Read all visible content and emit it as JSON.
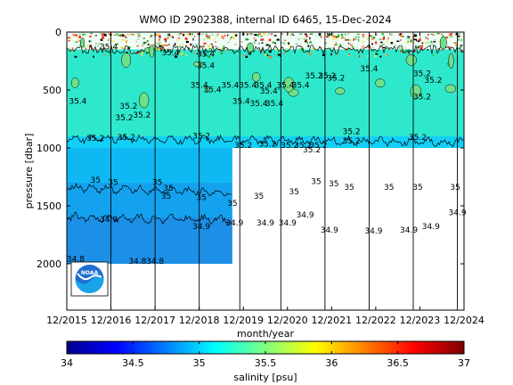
{
  "chart_data": {
    "type": "heatmap",
    "title": "WMO ID 2902388, internal ID 6465, 15-Dec-2024",
    "xlabel": "month/year",
    "ylabel": "pressure [dbar]",
    "x_tick_labels": [
      "12/2015",
      "12/2016",
      "12/2017",
      "12/2018",
      "12/2019",
      "12/2020",
      "12/2021",
      "12/2022",
      "12/2023",
      "12/2024"
    ],
    "x_tick_years": [
      2015,
      2016,
      2017,
      2018,
      2019,
      2020,
      2021,
      2022,
      2023,
      2024
    ],
    "xlim": [
      2015.0,
      2024.0
    ],
    "y_ticks": [
      0,
      500,
      1000,
      1500,
      2000
    ],
    "y_tick_labels": [
      "0",
      "500",
      "1000",
      "1500",
      "2000"
    ],
    "ylim": [
      0,
      2400
    ],
    "y_reversed": true,
    "colorbar": {
      "label": "salinity [psu]",
      "range": [
        34,
        37
      ],
      "ticks": [
        34,
        34.5,
        35,
        35.5,
        36,
        36.5,
        37
      ],
      "tick_labels": [
        "34",
        "34.5",
        "35",
        "35.5",
        "36",
        "36.5",
        "37"
      ]
    },
    "profile_years": [
      2016.0,
      2017.0,
      2018.0,
      2018.92,
      2019.85,
      2020.85,
      2021.85,
      2022.85,
      2023.85
    ],
    "data_extent": {
      "deep_end_year": 2018.75,
      "deep_max_pressure": 2000,
      "shallow_max_pressure": 1000
    },
    "salinity_layers": [
      {
        "p_top": 0,
        "p_bottom": 150,
        "salinity": 35.6,
        "color": "#f0fcf6"
      },
      {
        "p_top": 150,
        "p_bottom": 900,
        "salinity": 35.1,
        "color": "#2ee8cc"
      },
      {
        "p_top": 900,
        "p_bottom": 1000,
        "salinity": 35.0,
        "color": "#12cff6"
      },
      {
        "p_top": 1000,
        "p_bottom": 1300,
        "salinity": 34.95,
        "color": "#0fb8f2"
      },
      {
        "p_top": 1300,
        "p_bottom": 1600,
        "salinity": 34.9,
        "color": "#14a2ee"
      },
      {
        "p_top": 1600,
        "p_bottom": 2000,
        "salinity": 34.85,
        "color": "#1d8fe6"
      }
    ],
    "contours": [
      {
        "label": "35.2",
        "pressure_start": 920,
        "pressure_end": 950
      },
      {
        "label": "35",
        "pressure_start": 1340,
        "pressure_end": 1390
      },
      {
        "label": "34.9",
        "pressure_start": 1600,
        "pressure_end": 1620
      }
    ],
    "annotations": [
      {
        "text": "35.4",
        "x": 2015.95,
        "y": 150
      },
      {
        "text": "35.4",
        "x": 2017.35,
        "y": 200
      },
      {
        "text": "35.4",
        "x": 2018.15,
        "y": 210
      },
      {
        "text": "35.4",
        "x": 2018.15,
        "y": 310
      },
      {
        "text": "35.4",
        "x": 2018.0,
        "y": 480
      },
      {
        "text": "35.4",
        "x": 2018.3,
        "y": 520
      },
      {
        "text": "35.4",
        "x": 2018.7,
        "y": 480
      },
      {
        "text": "35.4",
        "x": 2019.1,
        "y": 480
      },
      {
        "text": "35.4",
        "x": 2019.45,
        "y": 480
      },
      {
        "text": "35.4'",
        "x": 2019.6,
        "y": 530
      },
      {
        "text": "35.4",
        "x": 2019.95,
        "y": 480
      },
      {
        "text": "35.4",
        "x": 2020.3,
        "y": 480
      },
      {
        "text": "35.4",
        "x": 2018.95,
        "y": 620
      },
      {
        "text": "35.4",
        "x": 2019.35,
        "y": 640
      },
      {
        "text": "35.4",
        "x": 2019.7,
        "y": 640
      },
      {
        "text": "35.4",
        "x": 2015.25,
        "y": 620
      },
      {
        "text": "35.2",
        "x": 2020.6,
        "y": 400
      },
      {
        "text": "35.2",
        "x": 2020.9,
        "y": 400
      },
      {
        "text": "35.2",
        "x": 2021.1,
        "y": 420
      },
      {
        "text": "35.4",
        "x": 2021.85,
        "y": 340
      },
      {
        "text": "35.2",
        "x": 2023.05,
        "y": 380
      },
      {
        "text": "35.2",
        "x": 2023.3,
        "y": 440
      },
      {
        "text": "35.2",
        "x": 2023.05,
        "y": 580
      },
      {
        "text": "35.2",
        "x": 2016.4,
        "y": 660
      },
      {
        "text": "35.2",
        "x": 2016.3,
        "y": 760
      },
      {
        "text": "35.2",
        "x": 2016.7,
        "y": 740
      },
      {
        "text": "35.2",
        "x": 2015.65,
        "y": 940
      },
      {
        "text": "35.2",
        "x": 2016.35,
        "y": 930
      },
      {
        "text": "35.2",
        "x": 2018.05,
        "y": 920
      },
      {
        "text": "35.2",
        "x": 2019.0,
        "y": 1000
      },
      {
        "text": "35.2",
        "x": 2019.55,
        "y": 990
      },
      {
        "text": "35.2",
        "x": 2020.05,
        "y": 1000
      },
      {
        "text": "35.2",
        "x": 2020.35,
        "y": 1000
      },
      {
        "text": "35.2",
        "x": 2020.7,
        "y": 1000
      },
      {
        "text": "35.2",
        "x": 2020.55,
        "y": 1040
      },
      {
        "text": "35.2",
        "x": 2021.45,
        "y": 880
      },
      {
        "text": "35.2",
        "x": 2021.45,
        "y": 960
      },
      {
        "text": "35.2",
        "x": 2022.95,
        "y": 930
      },
      {
        "text": "35",
        "x": 2015.65,
        "y": 1300
      },
      {
        "text": "35",
        "x": 2016.05,
        "y": 1320
      },
      {
        "text": "35",
        "x": 2017.05,
        "y": 1320
      },
      {
        "text": "35",
        "x": 2017.3,
        "y": 1370
      },
      {
        "text": "35",
        "x": 2017.25,
        "y": 1440
      },
      {
        "text": "35",
        "x": 2018.05,
        "y": 1450
      },
      {
        "text": "35",
        "x": 2018.75,
        "y": 1500
      },
      {
        "text": "35",
        "x": 2019.35,
        "y": 1440
      },
      {
        "text": "35",
        "x": 2020.15,
        "y": 1400
      },
      {
        "text": "35",
        "x": 2020.65,
        "y": 1310
      },
      {
        "text": "35",
        "x": 2021.05,
        "y": 1330
      },
      {
        "text": "35",
        "x": 2021.4,
        "y": 1360
      },
      {
        "text": "35",
        "x": 2022.3,
        "y": 1360
      },
      {
        "text": "35",
        "x": 2022.95,
        "y": 1360
      },
      {
        "text": "35",
        "x": 2023.8,
        "y": 1360
      },
      {
        "text": "34.9",
        "x": 2015.95,
        "y": 1640
      },
      {
        "text": "34.9",
        "x": 2018.05,
        "y": 1700
      },
      {
        "text": "34.9",
        "x": 2018.8,
        "y": 1670
      },
      {
        "text": "34.9",
        "x": 2019.5,
        "y": 1670
      },
      {
        "text": "34.9",
        "x": 2020.0,
        "y": 1670
      },
      {
        "text": "34.9",
        "x": 2020.4,
        "y": 1600
      },
      {
        "text": "34.9",
        "x": 2020.95,
        "y": 1730
      },
      {
        "text": "34.9",
        "x": 2021.95,
        "y": 1740
      },
      {
        "text": "34.9",
        "x": 2022.75,
        "y": 1730
      },
      {
        "text": "34.9",
        "x": 2023.25,
        "y": 1700
      },
      {
        "text": "34.9",
        "x": 2023.85,
        "y": 1580
      },
      {
        "text": "34.8",
        "x": 2015.2,
        "y": 1980
      },
      {
        "text": "34.8",
        "x": 2016.6,
        "y": 2000
      },
      {
        "text": "34.8",
        "x": 2017.0,
        "y": 2000
      }
    ]
  }
}
